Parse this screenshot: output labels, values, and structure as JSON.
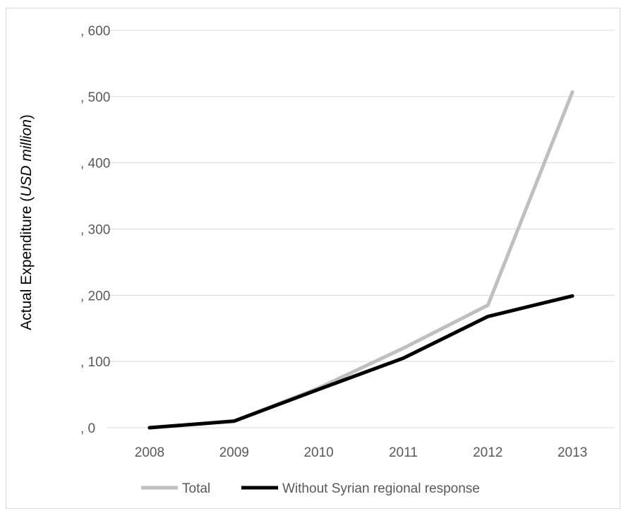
{
  "chart_data": {
    "type": "line",
    "title": "",
    "xlabel": "",
    "ylabel_prefix": "Actual  Expenditure (",
    "ylabel_units": "USD million",
    "ylabel_suffix": ")",
    "categories": [
      "2008",
      "2009",
      "2010",
      "2011",
      "2012",
      "2013"
    ],
    "y_tick_labels": [
      ", 0",
      ", 100",
      ", 200",
      ", 300",
      ", 400",
      ", 500",
      ", 600"
    ],
    "y_ticks": [
      0,
      100,
      200,
      300,
      400,
      500,
      600
    ],
    "ylim": [
      0,
      600
    ],
    "grid": true,
    "legend_position": "bottom",
    "series": [
      {
        "name": "Total",
        "color": "#bfbfbf",
        "values": [
          0,
          10,
          60,
          120,
          185,
          507
        ]
      },
      {
        "name": "Without Syrian regional response",
        "color": "#000000",
        "values": [
          0,
          10,
          58,
          105,
          168,
          199
        ]
      }
    ]
  }
}
